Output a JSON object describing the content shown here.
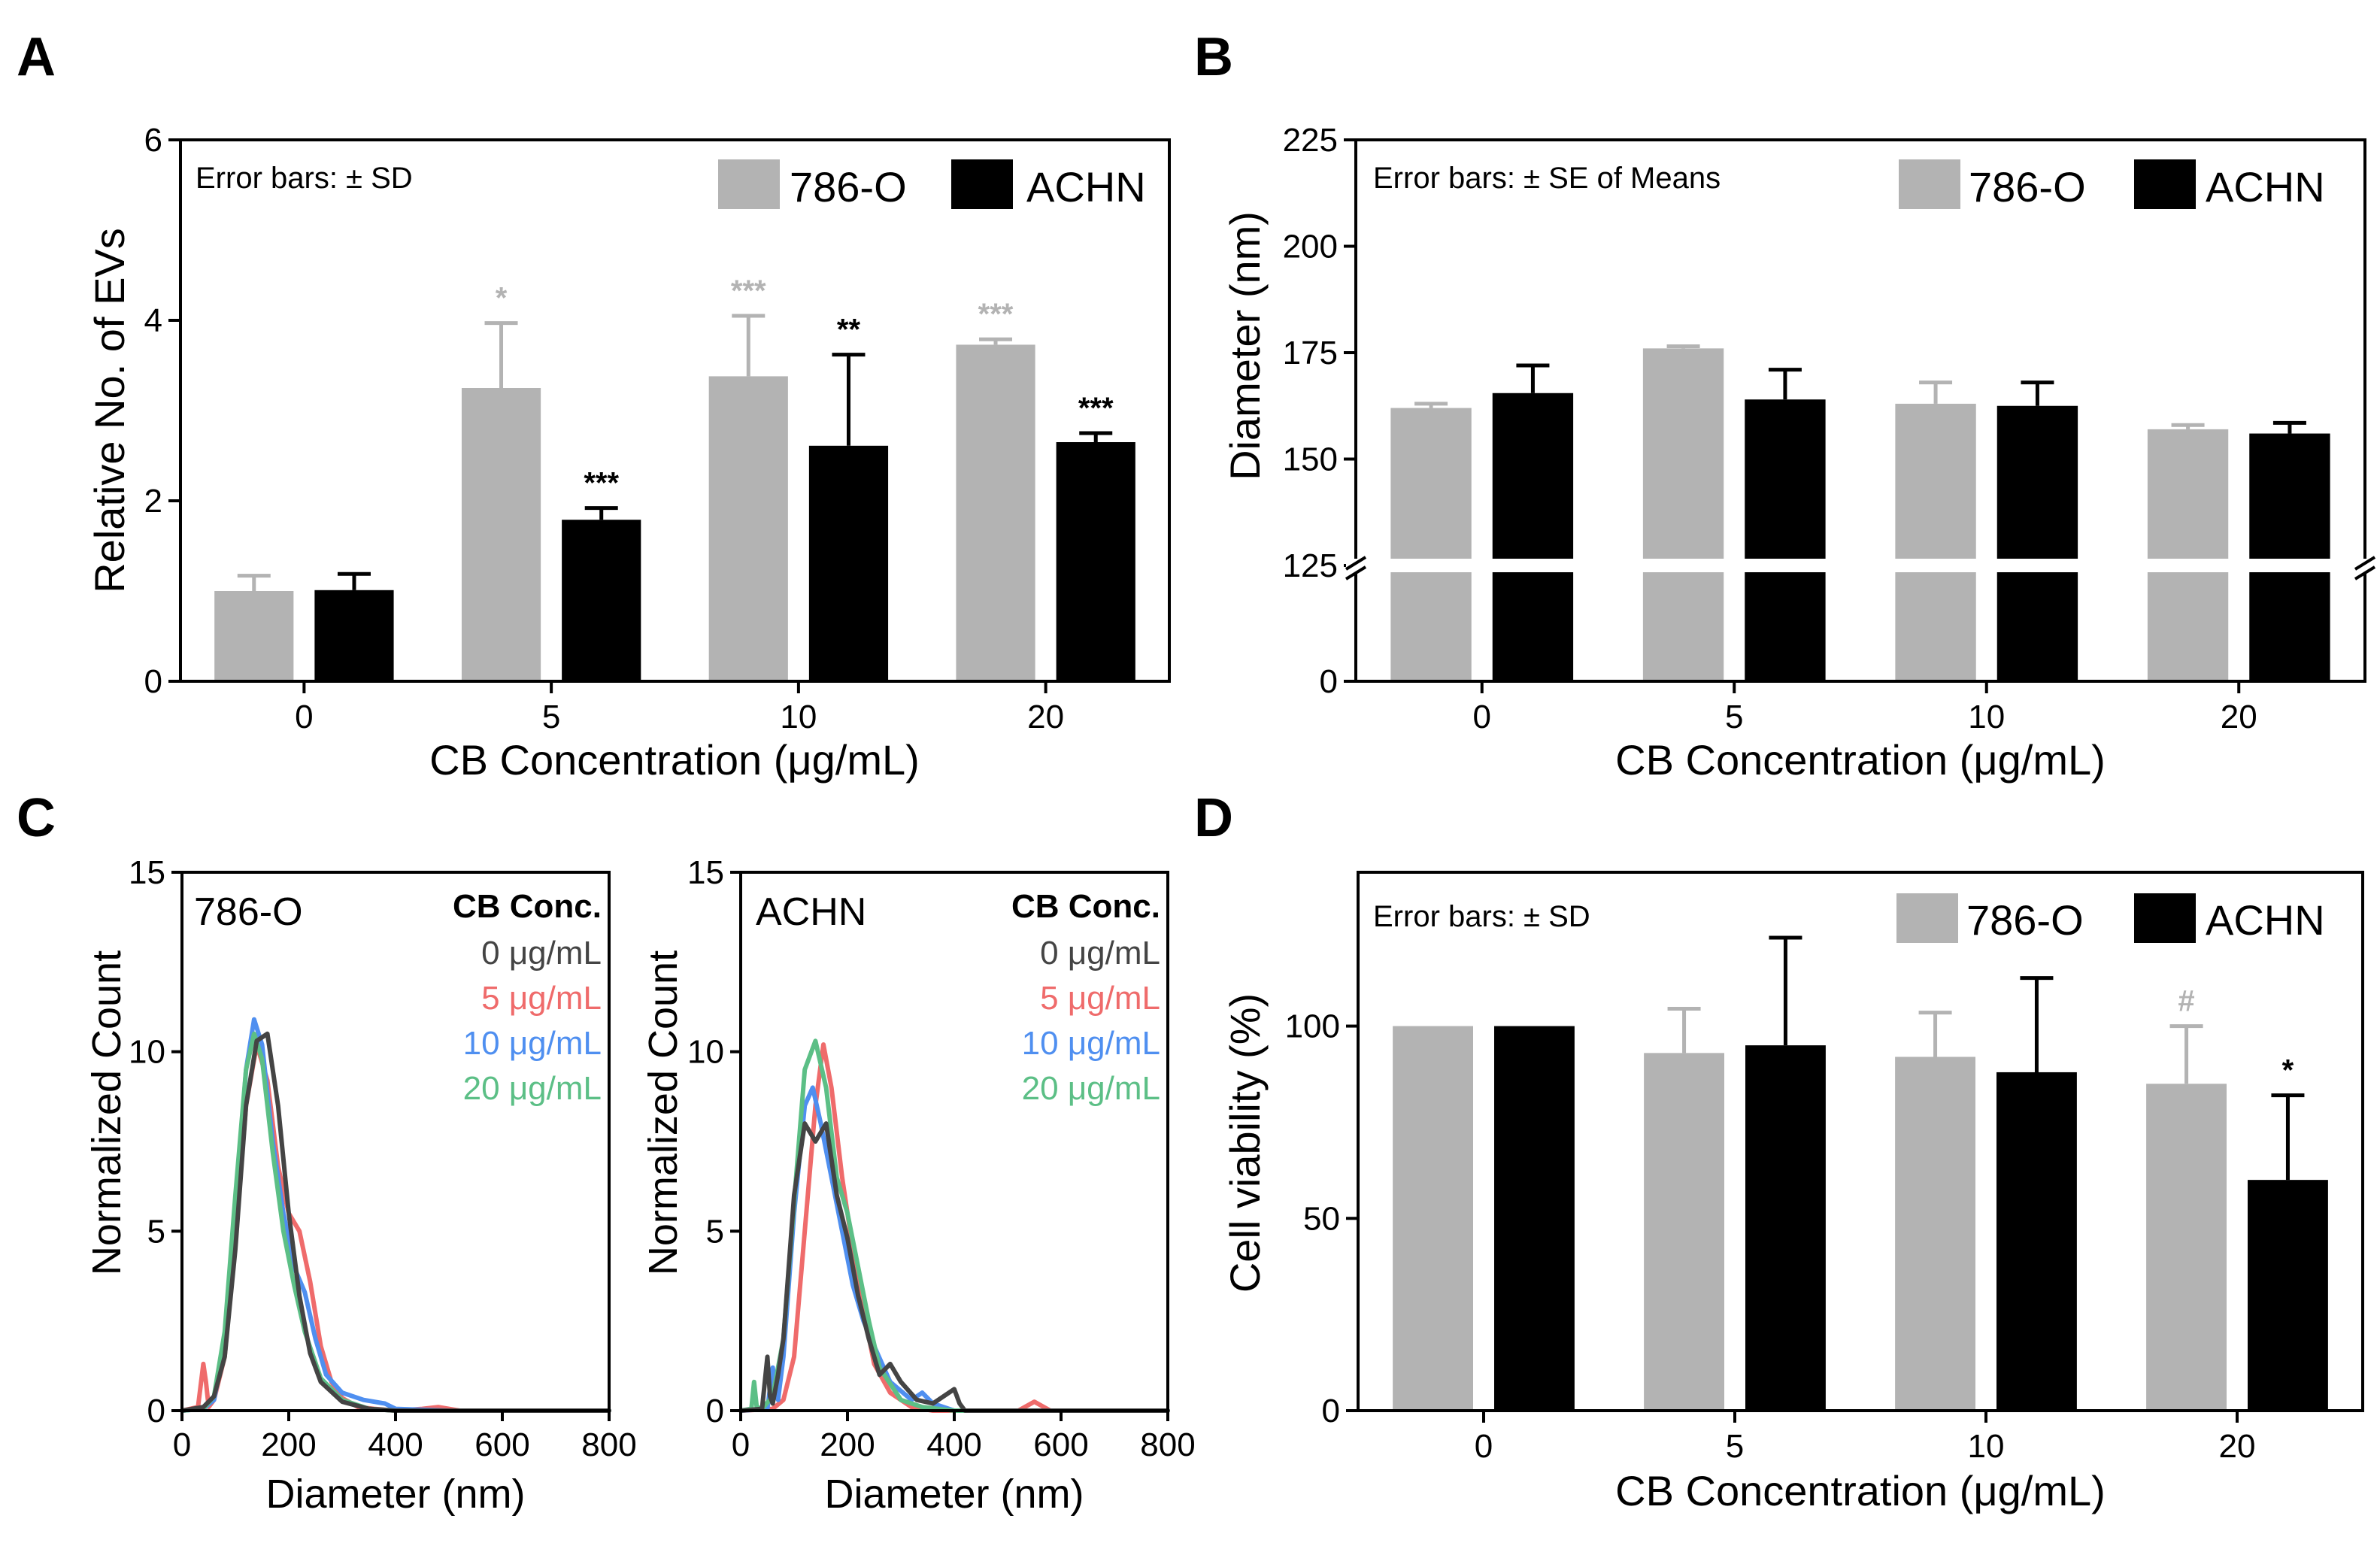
{
  "colors": {
    "c786": "#b3b3b3",
    "achn": "#000000",
    "c0": "#444444",
    "c5": "#ef6b6b",
    "c10": "#4f8ff0",
    "c20": "#5cbf86"
  },
  "panels": {
    "A": {
      "letter": "A",
      "ylabel": "Relative No. of EVs",
      "xlabel": "CB Concentration (μg/mL)",
      "note": "Error bars: ± SD",
      "legend": [
        "786-O",
        "ACHN"
      ]
    },
    "B": {
      "letter": "B",
      "ylabel": "Diameter (nm)",
      "xlabel": "CB Concentration (μg/mL)",
      "note": "Error bars: ± SE of Means",
      "legend": [
        "786-O",
        "ACHN"
      ]
    },
    "C": {
      "letter": "C",
      "ylabel": "Normalized Count",
      "xlabel": "Diameter (nm)",
      "legend_title": "CB Conc.",
      "legend_items": [
        "0 μg/mL",
        "5 μg/mL",
        "10 μg/mL",
        "20 μg/mL"
      ]
    },
    "D": {
      "letter": "D",
      "ylabel": "Cell viability (%)",
      "xlabel": "CB Concentration (μg/mL)",
      "note": "Error bars: ± SD",
      "legend": [
        "786-O",
        "ACHN"
      ]
    }
  },
  "chart_data": [
    {
      "panel": "A",
      "type": "bar",
      "xlabel": "CB Concentration (μg/mL)",
      "ylabel": "Relative No. of EVs",
      "categories": [
        "0",
        "5",
        "10",
        "20"
      ],
      "ylim": [
        0,
        6
      ],
      "yticks": [
        0,
        2,
        4,
        6
      ],
      "series": [
        {
          "name": "786-O",
          "color": "#b3b3b3",
          "values": [
            1.0,
            3.25,
            3.38,
            3.73
          ],
          "errors": [
            0.17,
            0.72,
            0.67,
            0.06
          ],
          "sig": [
            "",
            "*",
            "***",
            "***"
          ]
        },
        {
          "name": "ACHN",
          "color": "#000000",
          "values": [
            1.01,
            1.79,
            2.61,
            2.65
          ],
          "errors": [
            0.18,
            0.13,
            1.01,
            0.1
          ],
          "sig": [
            "",
            "***",
            "**",
            "***"
          ]
        }
      ],
      "legend": "top-right",
      "note": "Error bars: ± SD"
    },
    {
      "panel": "B",
      "type": "bar",
      "xlabel": "CB Concentration (μg/mL)",
      "ylabel": "Diameter (nm)",
      "categories": [
        "0",
        "5",
        "10",
        "20"
      ],
      "ylim": [
        0,
        225
      ],
      "yticks": [
        0,
        125,
        150,
        175,
        200,
        225
      ],
      "axis_break": 125,
      "series": [
        {
          "name": "786-O",
          "color": "#b3b3b3",
          "values": [
            162,
            176,
            163,
            157
          ],
          "errors": [
            1,
            0.5,
            5,
            1
          ]
        },
        {
          "name": "ACHN",
          "color": "#000000",
          "values": [
            165.5,
            164,
            162.5,
            156
          ],
          "errors": [
            6.5,
            7,
            5.5,
            2.5
          ]
        }
      ],
      "legend": "top-right",
      "note": "Error bars: ± SE of Means"
    },
    {
      "panel": "C-786-O",
      "type": "line",
      "label": "786-O",
      "xlabel": "Diameter (nm)",
      "ylabel": "Normalized Count",
      "xlim": [
        0,
        800
      ],
      "ylim": [
        0,
        15
      ],
      "xticks": [
        0,
        200,
        400,
        600,
        800
      ],
      "yticks": [
        0,
        5,
        10,
        15
      ],
      "series": [
        {
          "name": "0 μg/mL",
          "color": "#444444",
          "x": [
            0,
            40,
            60,
            80,
            100,
            120,
            140,
            160,
            180,
            200,
            220,
            240,
            260,
            300,
            350,
            400,
            500,
            600,
            800
          ],
          "y": [
            0,
            0.1,
            0.4,
            1.5,
            4.5,
            8.5,
            10.3,
            10.5,
            8.5,
            5.5,
            3.2,
            1.6,
            0.8,
            0.25,
            0.05,
            0,
            0,
            0,
            0
          ]
        },
        {
          "name": "5 μg/mL",
          "color": "#ef6b6b",
          "x": [
            0,
            30,
            40,
            45,
            50,
            60,
            80,
            100,
            120,
            140,
            160,
            180,
            200,
            220,
            240,
            260,
            280,
            300,
            330,
            360,
            400,
            450,
            480,
            520,
            600,
            800
          ],
          "y": [
            0,
            0.1,
            1.3,
            0.8,
            0.1,
            0.3,
            1.5,
            4.8,
            8.5,
            10.2,
            9.2,
            6.8,
            5.5,
            5.0,
            3.6,
            1.8,
            0.8,
            0.35,
            0.1,
            0.05,
            0,
            0.05,
            0.1,
            0,
            0,
            0
          ]
        },
        {
          "name": "10 μg/mL",
          "color": "#4f8ff0",
          "x": [
            0,
            40,
            60,
            80,
            100,
            120,
            135,
            150,
            170,
            190,
            210,
            230,
            250,
            270,
            300,
            340,
            380,
            400,
            500,
            800
          ],
          "y": [
            0,
            0.05,
            0.3,
            1.8,
            5.5,
            9.5,
            10.9,
            10.2,
            7.5,
            5.5,
            4.0,
            3.3,
            2.0,
            1.0,
            0.5,
            0.3,
            0.2,
            0.05,
            0,
            0
          ]
        },
        {
          "name": "20 μg/mL",
          "color": "#5cbf86",
          "x": [
            0,
            40,
            60,
            80,
            100,
            120,
            135,
            150,
            170,
            190,
            210,
            230,
            260,
            300,
            350,
            400,
            800
          ],
          "y": [
            0,
            0.05,
            0.4,
            2.2,
            6.0,
            9.5,
            10.5,
            9.8,
            7.2,
            5.0,
            3.5,
            2.2,
            0.9,
            0.3,
            0.05,
            0,
            0
          ]
        }
      ],
      "legend": "top-right"
    },
    {
      "panel": "C-ACHN",
      "type": "line",
      "label": "ACHN",
      "xlabel": "Diameter (nm)",
      "ylabel": "Normalized Count",
      "xlim": [
        0,
        800
      ],
      "ylim": [
        0,
        15
      ],
      "xticks": [
        0,
        200,
        400,
        600,
        800
      ],
      "yticks": [
        0,
        5,
        10,
        15
      ],
      "series": [
        {
          "name": "0 μg/mL",
          "color": "#444444",
          "x": [
            0,
            40,
            50,
            55,
            60,
            70,
            80,
            100,
            120,
            140,
            160,
            180,
            200,
            220,
            240,
            260,
            280,
            300,
            330,
            360,
            400,
            410,
            420,
            800
          ],
          "y": [
            0,
            0.05,
            1.5,
            0.4,
            0.2,
            1.0,
            2.0,
            6.0,
            8.0,
            7.5,
            8.0,
            6.0,
            4.8,
            3.2,
            2.0,
            1.0,
            1.3,
            0.8,
            0.3,
            0.2,
            0.6,
            0.2,
            0,
            0
          ]
        },
        {
          "name": "5 μg/mL",
          "color": "#ef6b6b",
          "x": [
            0,
            60,
            80,
            100,
            120,
            140,
            155,
            170,
            190,
            210,
            230,
            250,
            280,
            320,
            360,
            400,
            520,
            550,
            580,
            800
          ],
          "y": [
            0,
            0.05,
            0.3,
            1.5,
            5.0,
            8.5,
            10.2,
            9.0,
            6.5,
            4.5,
            2.8,
            1.3,
            0.5,
            0.1,
            0,
            0,
            0,
            0.25,
            0,
            0
          ]
        },
        {
          "name": "10 μg/mL",
          "color": "#4f8ff0",
          "x": [
            0,
            50,
            60,
            70,
            80,
            100,
            120,
            135,
            150,
            170,
            190,
            210,
            230,
            250,
            280,
            320,
            340,
            360,
            400,
            800
          ],
          "y": [
            0,
            0.05,
            1.2,
            0.3,
            1.5,
            5.5,
            8.5,
            9.0,
            8.0,
            6.5,
            5.0,
            3.5,
            2.5,
            1.8,
            0.8,
            0.3,
            0.5,
            0.2,
            0,
            0
          ]
        },
        {
          "name": "20 μg/mL",
          "color": "#5cbf86",
          "x": [
            0,
            20,
            25,
            30,
            40,
            60,
            80,
            100,
            120,
            140,
            160,
            180,
            200,
            220,
            240,
            260,
            300,
            340,
            400,
            800
          ],
          "y": [
            0,
            0.05,
            0.8,
            0.1,
            0.05,
            0.4,
            2.0,
            5.8,
            9.5,
            10.3,
            9.0,
            6.5,
            5.5,
            4.0,
            2.5,
            1.2,
            0.3,
            0.1,
            0,
            0
          ]
        }
      ],
      "legend": "top-right"
    },
    {
      "panel": "D",
      "type": "bar",
      "xlabel": "CB Concentration (μg/mL)",
      "ylabel": "Cell viability (%)",
      "categories": [
        "0",
        "5",
        "10",
        "20"
      ],
      "ylim": [
        0,
        140
      ],
      "yticks": [
        0,
        50,
        100
      ],
      "series": [
        {
          "name": "786-O",
          "color": "#b3b3b3",
          "values": [
            100,
            93,
            92,
            85
          ],
          "errors": [
            0,
            11.5,
            11.5,
            15
          ],
          "sig": [
            "",
            "",
            "",
            "#"
          ]
        },
        {
          "name": "ACHN",
          "color": "#000000",
          "values": [
            100,
            95,
            88,
            60
          ],
          "errors": [
            0,
            28,
            24.5,
            22
          ],
          "sig": [
            "",
            "",
            "",
            "*"
          ]
        }
      ],
      "legend": "top-right",
      "note": "Error bars: ± SD"
    }
  ]
}
